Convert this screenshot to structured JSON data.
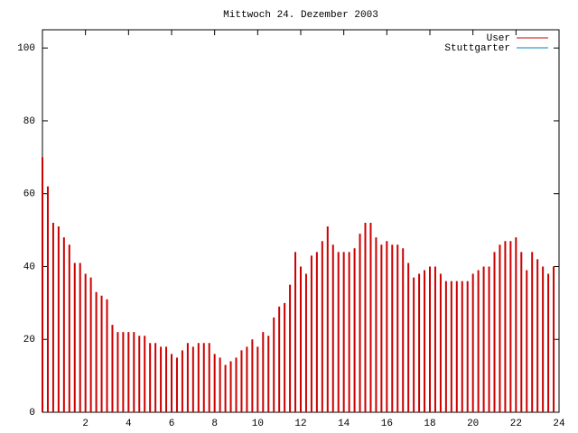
{
  "chart_data": {
    "type": "impulse",
    "title": "Mittwoch 24. Dezember 2003",
    "xlim": [
      0,
      24
    ],
    "xticks": [
      2,
      4,
      6,
      8,
      10,
      12,
      14,
      16,
      18,
      20,
      22,
      24
    ],
    "ylim": [
      0,
      105
    ],
    "yticks": [
      0,
      20,
      40,
      60,
      80,
      100
    ],
    "legend": "top-right",
    "series": [
      {
        "name": "User",
        "color": "#cc0000",
        "x": [
          0,
          0.25,
          0.5,
          0.75,
          1,
          1.25,
          1.5,
          1.75,
          2,
          2.25,
          2.5,
          2.75,
          3,
          3.25,
          3.5,
          3.75,
          4,
          4.25,
          4.5,
          4.75,
          5,
          5.25,
          5.5,
          5.75,
          6,
          6.25,
          6.5,
          6.75,
          7,
          7.25,
          7.5,
          7.75,
          8,
          8.25,
          8.5,
          8.75,
          9,
          9.25,
          9.5,
          9.75,
          10,
          10.25,
          10.5,
          10.75,
          11,
          11.25,
          11.5,
          11.75,
          12,
          12.25,
          12.5,
          12.75,
          13,
          13.25,
          13.5,
          13.75,
          14,
          14.25,
          14.5,
          14.75,
          15,
          15.25,
          15.5,
          15.75,
          16,
          16.25,
          16.5,
          16.75,
          17,
          17.25,
          17.5,
          17.75,
          18,
          18.25,
          18.5,
          18.75,
          19,
          19.25,
          19.5,
          19.75,
          20,
          20.25,
          20.5,
          20.75,
          21,
          21.25,
          21.5,
          21.75,
          22,
          22.25,
          22.5,
          22.75,
          23,
          23.25,
          23.5,
          23.75
        ],
        "values": [
          70,
          62,
          52,
          51,
          48,
          46,
          41,
          41,
          38,
          37,
          33,
          32,
          31,
          24,
          22,
          22,
          22,
          22,
          21,
          21,
          19,
          19,
          18,
          18,
          16,
          15,
          17,
          19,
          18,
          19,
          19,
          19,
          16,
          15,
          13,
          14,
          15,
          17,
          18,
          20,
          18,
          22,
          21,
          26,
          29,
          30,
          35,
          44,
          40,
          38,
          43,
          44,
          47,
          51,
          46,
          44,
          44,
          44,
          45,
          49,
          52,
          52,
          48,
          46,
          47,
          46,
          46,
          45,
          41,
          37,
          38,
          39,
          40,
          40,
          38,
          36,
          36,
          36,
          36,
          36,
          38,
          39,
          40,
          40,
          44,
          46,
          47,
          47,
          48,
          44,
          39,
          44,
          42,
          40,
          38,
          40
        ]
      },
      {
        "name": "Stuttgarter",
        "color": "#0080c0",
        "x": [],
        "values": []
      }
    ]
  }
}
